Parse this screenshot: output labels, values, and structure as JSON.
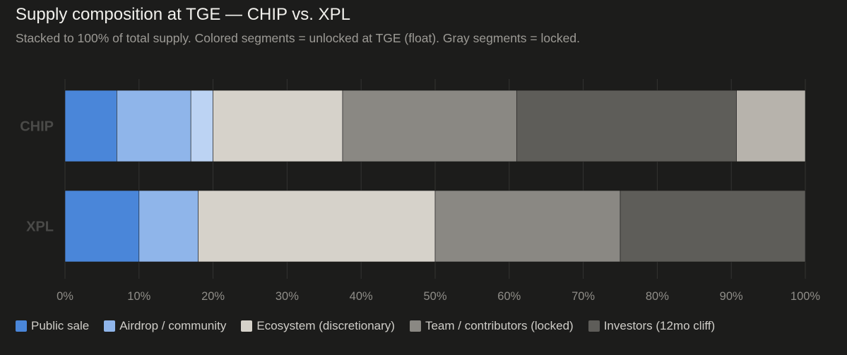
{
  "title": "Supply composition at TGE — CHIP vs. XPL",
  "subtitle": "Stacked to 100% of total supply. Colored segments = unlocked at TGE (float). Gray segments = locked.",
  "legend": [
    {
      "label": "Public sale",
      "color": "#4a86d9"
    },
    {
      "label": "Airdrop / community",
      "color": "#8fb5ea"
    },
    {
      "label": "Ecosystem (discretionary)",
      "color": "#d6d2ca"
    },
    {
      "label": "Team / contributors (locked)",
      "color": "#8a8883"
    },
    {
      "label": "Investors (12mo cliff)",
      "color": "#5e5d59"
    }
  ],
  "chart_data": {
    "type": "bar",
    "orientation": "horizontal",
    "stacked": true,
    "categories": [
      "CHIP",
      "XPL"
    ],
    "xlim": [
      0,
      100
    ],
    "x_ticks": [
      "0%",
      "10%",
      "20%",
      "30%",
      "40%",
      "50%",
      "60%",
      "70%",
      "80%",
      "90%",
      "100%"
    ],
    "grid": true,
    "legend_position": "bottom",
    "bars": [
      {
        "category": "CHIP",
        "segments": [
          {
            "value": 7.0,
            "color": "#4a86d9"
          },
          {
            "value": 10.0,
            "color": "#8fb5ea"
          },
          {
            "value": 3.0,
            "color": "#bcd3f3"
          },
          {
            "value": 17.5,
            "color": "#d6d2ca"
          },
          {
            "value": 23.5,
            "color": "#8a8883"
          },
          {
            "value": 29.7,
            "color": "#5e5d59"
          },
          {
            "value": 9.3,
            "color": "#b7b3ac"
          }
        ]
      },
      {
        "category": "XPL",
        "segments": [
          {
            "value": 10.0,
            "color": "#4a86d9"
          },
          {
            "value": 8.0,
            "color": "#8fb5ea"
          },
          {
            "value": 32.0,
            "color": "#d6d2ca"
          },
          {
            "value": 25.0,
            "color": "#8a8883"
          },
          {
            "value": 25.0,
            "color": "#5e5d59"
          }
        ]
      }
    ]
  }
}
